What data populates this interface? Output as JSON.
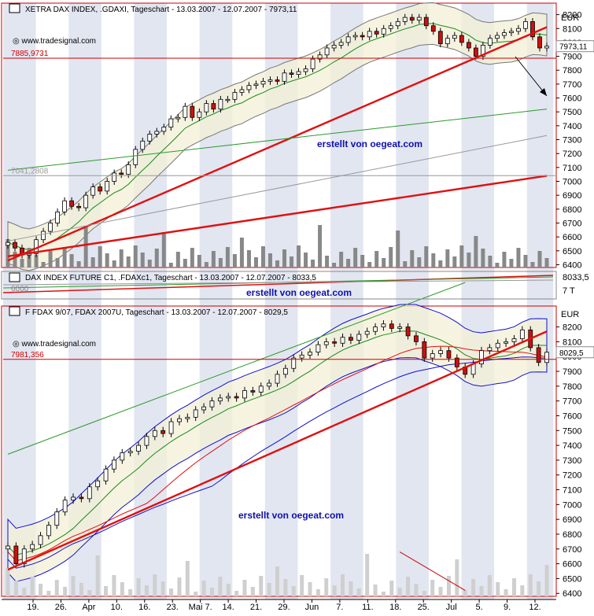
{
  "chart_data": [
    {
      "type": "candlestick",
      "title": "XETRA DAX INDEX, .GDAXI, Tageschart - 13.03.2007 - 12.07.2007 - 7973,11",
      "source_label": "www.tradesignal.com",
      "watermark": "erstellt von oegeat.com",
      "unit": "EUR",
      "last_value": "7973,11",
      "level_labels": [
        {
          "text": "7885,9731",
          "y": 7886,
          "color": "#cc0000"
        },
        {
          "text": "7041,2808",
          "y": 7041,
          "color": "#999999"
        }
      ],
      "ylim": [
        6380,
        8260
      ],
      "yticks": [
        6400,
        6500,
        6600,
        6700,
        6800,
        6900,
        7000,
        7100,
        7200,
        7300,
        7400,
        7500,
        7600,
        7700,
        7800,
        7900,
        8000,
        8100,
        8200
      ],
      "ytick_labels": [
        "6400",
        "6500",
        "6600",
        "6700",
        "6800",
        "6900",
        "7000",
        "7100",
        "7200",
        "7300",
        "7400",
        "7500",
        "7600",
        "7700",
        "7800",
        "7900",
        "8000",
        "8100",
        "8200"
      ],
      "close_series": [
        6560,
        6520,
        6470,
        6480,
        6580,
        6640,
        6700,
        6780,
        6860,
        6820,
        6810,
        6900,
        6960,
        6930,
        7000,
        7060,
        7050,
        7120,
        7230,
        7290,
        7340,
        7360,
        7390,
        7450,
        7460,
        7540,
        7460,
        7500,
        7560,
        7520,
        7590,
        7590,
        7640,
        7660,
        7690,
        7700,
        7720,
        7730,
        7720,
        7780,
        7770,
        7790,
        7810,
        7880,
        7910,
        7960,
        7980,
        8000,
        8040,
        8050,
        8040,
        8080,
        8060,
        8100,
        8120,
        8150,
        8180,
        8160,
        8180,
        8120,
        8080,
        7990,
        8030,
        8050,
        8000,
        7960,
        7900,
        7980,
        8030,
        8050,
        8070,
        8080,
        8100,
        8150,
        8040,
        7960,
        7973
      ],
      "trendlines": [
        {
          "name": "",
          "color": "#e01010",
          "points": [
            [
              0,
              6430
            ],
            [
              76,
              8110
            ]
          ]
        },
        {
          "name": "",
          "color": "#e01010",
          "points": [
            [
              0,
              6460
            ],
            [
              76,
              7040
            ]
          ]
        },
        {
          "name": "",
          "color": "#2a9a2a",
          "points": [
            [
              0,
              7080
            ],
            [
              76,
              7520
            ]
          ]
        },
        {
          "name": "",
          "color": "#999999",
          "points": [
            [
              0,
              6570
            ],
            [
              76,
              7330
            ]
          ]
        }
      ]
    },
    {
      "type": "line",
      "title": "DAX INDEX FUTURE C1, .FDAXc1, Tageschart - 13.03.2007 - 12.07.2007 - 8033,5",
      "watermark": "erstellt von oegeat.com",
      "last_value": "8033,5",
      "right_label": "7 T",
      "left_label": "6000"
    },
    {
      "type": "candlestick",
      "title": "F FDAX 9/07, FDAX 2007U, Tageschart - 13.03.2007 - 12.07.2007 - 8029,5",
      "source_label": "www.tradesignal.com",
      "watermark": "erstellt von oegeat.com",
      "unit": "EUR",
      "last_value": "8029,5",
      "level_labels": [
        {
          "text": "7981,356",
          "y": 7981,
          "color": "#cc0000"
        }
      ],
      "ylim": [
        6380,
        8320
      ],
      "yticks": [
        6400,
        6500,
        6600,
        6700,
        6800,
        6900,
        7000,
        7100,
        7200,
        7300,
        7400,
        7500,
        7600,
        7700,
        7800,
        7900,
        8000,
        8100,
        8200
      ],
      "ytick_labels": [
        "6400",
        "6500",
        "6600",
        "6700",
        "6800",
        "6900",
        "7000",
        "7100",
        "7200",
        "7300",
        "7400",
        "7500",
        "7600",
        "7700",
        "7800",
        "7900",
        "8000",
        "8100",
        "8200"
      ],
      "close_series": [
        6720,
        6600,
        6700,
        6730,
        6790,
        6860,
        6950,
        7030,
        7050,
        7040,
        7120,
        7160,
        7240,
        7300,
        7350,
        7360,
        7400,
        7460,
        7500,
        7480,
        7560,
        7580,
        7590,
        7640,
        7660,
        7700,
        7720,
        7730,
        7720,
        7770,
        7760,
        7800,
        7820,
        7880,
        7920,
        7990,
        8010,
        8030,
        8080,
        8100,
        8090,
        8130,
        8110,
        8150,
        8170,
        8200,
        8220,
        8190,
        8200,
        8140,
        8100,
        7990,
        8020,
        8040,
        7990,
        7930,
        7880,
        7950,
        8040,
        8060,
        8090,
        8100,
        8120,
        8180,
        8060,
        7960,
        8029
      ],
      "trendlines": [
        {
          "name": "",
          "color": "#e01010",
          "points": [
            [
              0,
              6560
            ],
            [
              66,
              8170
            ]
          ]
        },
        {
          "name": "",
          "color": "#2a9a2a",
          "points": [
            [
              0,
              7340
            ],
            [
              56,
              8500
            ]
          ]
        }
      ],
      "volume_trendline": {
        "color": "#cc0000",
        "points": [
          [
            48,
            6680
          ],
          [
            56,
            6420
          ]
        ]
      },
      "xtick_labels": [
        "19.",
        "26.",
        "Apr",
        "10.",
        "16.",
        "23.",
        "Mai 7.",
        "14.",
        "21.",
        "29.",
        "Jun",
        "7.",
        "11.",
        "18.",
        "25.",
        "Jul",
        "5.",
        "9.",
        "12."
      ]
    }
  ]
}
